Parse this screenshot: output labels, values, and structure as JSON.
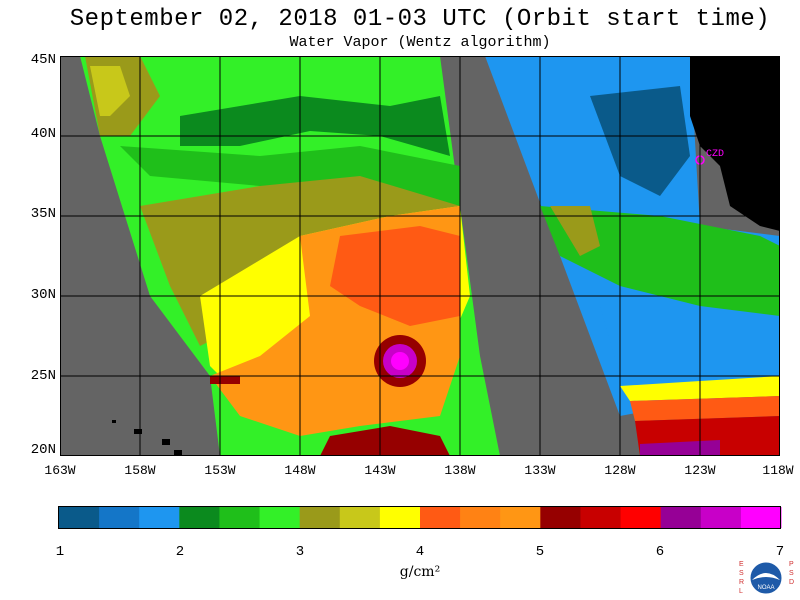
{
  "title": "September 02, 2018  01-03 UTC  (Orbit start time)",
  "subtitle": "Water Vapor (Wentz algorithm)",
  "latitude_labels": [
    "45N",
    "40N",
    "35N",
    "30N",
    "25N",
    "20N"
  ],
  "longitude_labels": [
    "163W",
    "158W",
    "153W",
    "148W",
    "143W",
    "138W",
    "133W",
    "128W",
    "123W",
    "118W"
  ],
  "station_label": "CZD",
  "colorbar": {
    "ticks": [
      "1",
      "2",
      "3",
      "4",
      "5",
      "6",
      "7"
    ],
    "units": "g/cm²",
    "colors": [
      "#0a5a8a",
      "#1476c8",
      "#1e96f0",
      "#0b8a1e",
      "#1fbf1a",
      "#33f028",
      "#9a9a1a",
      "#c8c81a",
      "#ffff00",
      "#ff5a14",
      "#ff8214",
      "#ff9614",
      "#960000",
      "#c80000",
      "#ff0000",
      "#960096",
      "#c800c8",
      "#ff00ff"
    ]
  },
  "colors": {
    "no_data": "#646464",
    "land": "#000000",
    "grid": "#000000",
    "station_marker": "#ff00ff"
  },
  "logo": {
    "left_text": "ESRL",
    "right_text": "PSD",
    "center_text": "NOAA"
  }
}
